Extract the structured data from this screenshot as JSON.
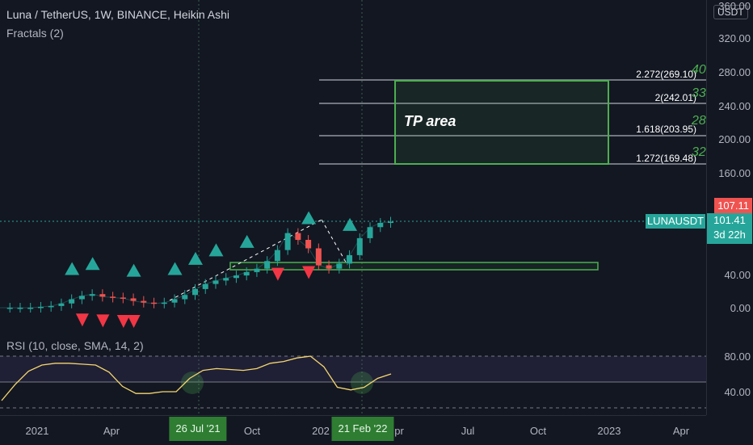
{
  "header": {
    "title": "Luna / TetherUS, 1W, BINANCE, Heikin Ashi",
    "indicator": "Fractals (2)"
  },
  "rsi": {
    "legend": "RSI (10, close, SMA, 14, 2)"
  },
  "price_axis": {
    "currency_badge": "USDT",
    "labels": [
      "360.00",
      "320.00",
      "280.00",
      "240.00",
      "200.00",
      "160.00",
      "40.00",
      "0.00"
    ],
    "current_high_badge": "107.11",
    "last_price": "101.41",
    "countdown": "3d 22h",
    "symbol": "LUNAUSDT"
  },
  "rsi_axis": {
    "labels": [
      "80.00",
      "40.00"
    ]
  },
  "time_axis": {
    "labels": [
      "2021",
      "Apr",
      "Oct",
      "202",
      "pr",
      "Jul",
      "Oct",
      "2023",
      "Apr"
    ],
    "tags": [
      "26 Jul '21",
      "21 Feb '22"
    ]
  },
  "annotations": {
    "tp_area": "TP area",
    "fib_levels": [
      {
        "label": "2.272(269.10)",
        "num": "40"
      },
      {
        "label": "2(242.01)",
        "num": "33"
      },
      {
        "label": "1.618(203.95)",
        "num": "28"
      },
      {
        "label": "1.272(169.48)",
        "num": "32"
      }
    ]
  },
  "colors": {
    "background": "#131722",
    "up": "#26a69a",
    "down": "#ef5350",
    "fractal_up": "#26a69a",
    "fractal_down": "#f23645",
    "box": "#4caf50",
    "rsi_line": "#f5d76e"
  },
  "chart_data": {
    "type": "line",
    "series": [
      {
        "values": [
          0,
          0,
          0,
          0,
          1,
          2,
          5,
          10,
          14,
          16,
          13,
          12,
          11,
          8,
          6,
          5,
          6,
          10,
          15,
          22,
          28,
          32,
          35,
          38,
          42,
          46,
          55,
          68,
          88,
          80,
          70,
          50,
          46,
          52,
          62,
          82,
          95,
          100,
          101.41
        ]
      }
    ],
    "fractals_up_at": [
      7,
      9,
      13,
      17,
      19,
      21,
      24,
      30,
      34
    ],
    "fractals_down_at": [
      8,
      10,
      12,
      13,
      27,
      30
    ],
    "rsi": [
      30,
      48,
      63,
      70,
      72,
      72,
      71,
      70,
      62,
      46,
      38,
      38,
      40,
      40,
      55,
      64,
      66,
      65,
      64,
      66,
      72,
      74,
      78,
      80,
      68,
      45,
      42,
      45,
      55,
      60
    ]
  }
}
